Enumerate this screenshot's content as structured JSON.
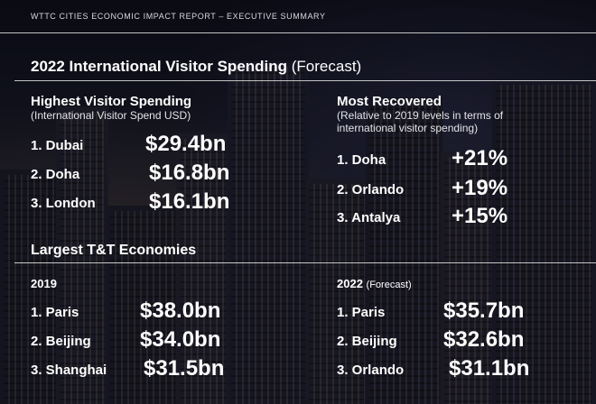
{
  "report": {
    "header": "WTTC CITIES ECONOMIC IMPACT REPORT – EXECUTIVE SUMMARY"
  },
  "spending": {
    "title": "2022 International Visitor Spending",
    "title_suffix": "(Forecast)",
    "highest": {
      "title": "Highest Visitor Spending",
      "subtitle": "(International Visitor Spend USD)",
      "items": [
        {
          "rank": "1. Dubai",
          "value": "$29.4bn"
        },
        {
          "rank": "2. Doha",
          "value": "$16.8bn"
        },
        {
          "rank": "3. London",
          "value": "$16.1bn"
        }
      ]
    },
    "recovered": {
      "title": "Most Recovered",
      "subtitle_line1": "(Relative to 2019 levels in terms of",
      "subtitle_line2": "international visitor spending)",
      "items": [
        {
          "rank": "1. Doha",
          "value": "+21%"
        },
        {
          "rank": "2. Orlando",
          "value": "+19%"
        },
        {
          "rank": "3. Antalya",
          "value": "+15%"
        }
      ]
    }
  },
  "economies": {
    "title": "Largest T&T Economies",
    "y2019": {
      "label": "2019",
      "items": [
        {
          "rank": "1. Paris",
          "value": "$38.0bn"
        },
        {
          "rank": "2. Beijing",
          "value": "$34.0bn"
        },
        {
          "rank": "3. Shanghai",
          "value": "$31.5bn"
        }
      ]
    },
    "y2022": {
      "label": "2022",
      "label_suffix": "(Forecast)",
      "items": [
        {
          "rank": "1. Paris",
          "value": "$35.7bn"
        },
        {
          "rank": "2. Beijing",
          "value": "$32.6bn"
        },
        {
          "rank": "3. Orlando",
          "value": "$31.1bn"
        }
      ]
    }
  }
}
